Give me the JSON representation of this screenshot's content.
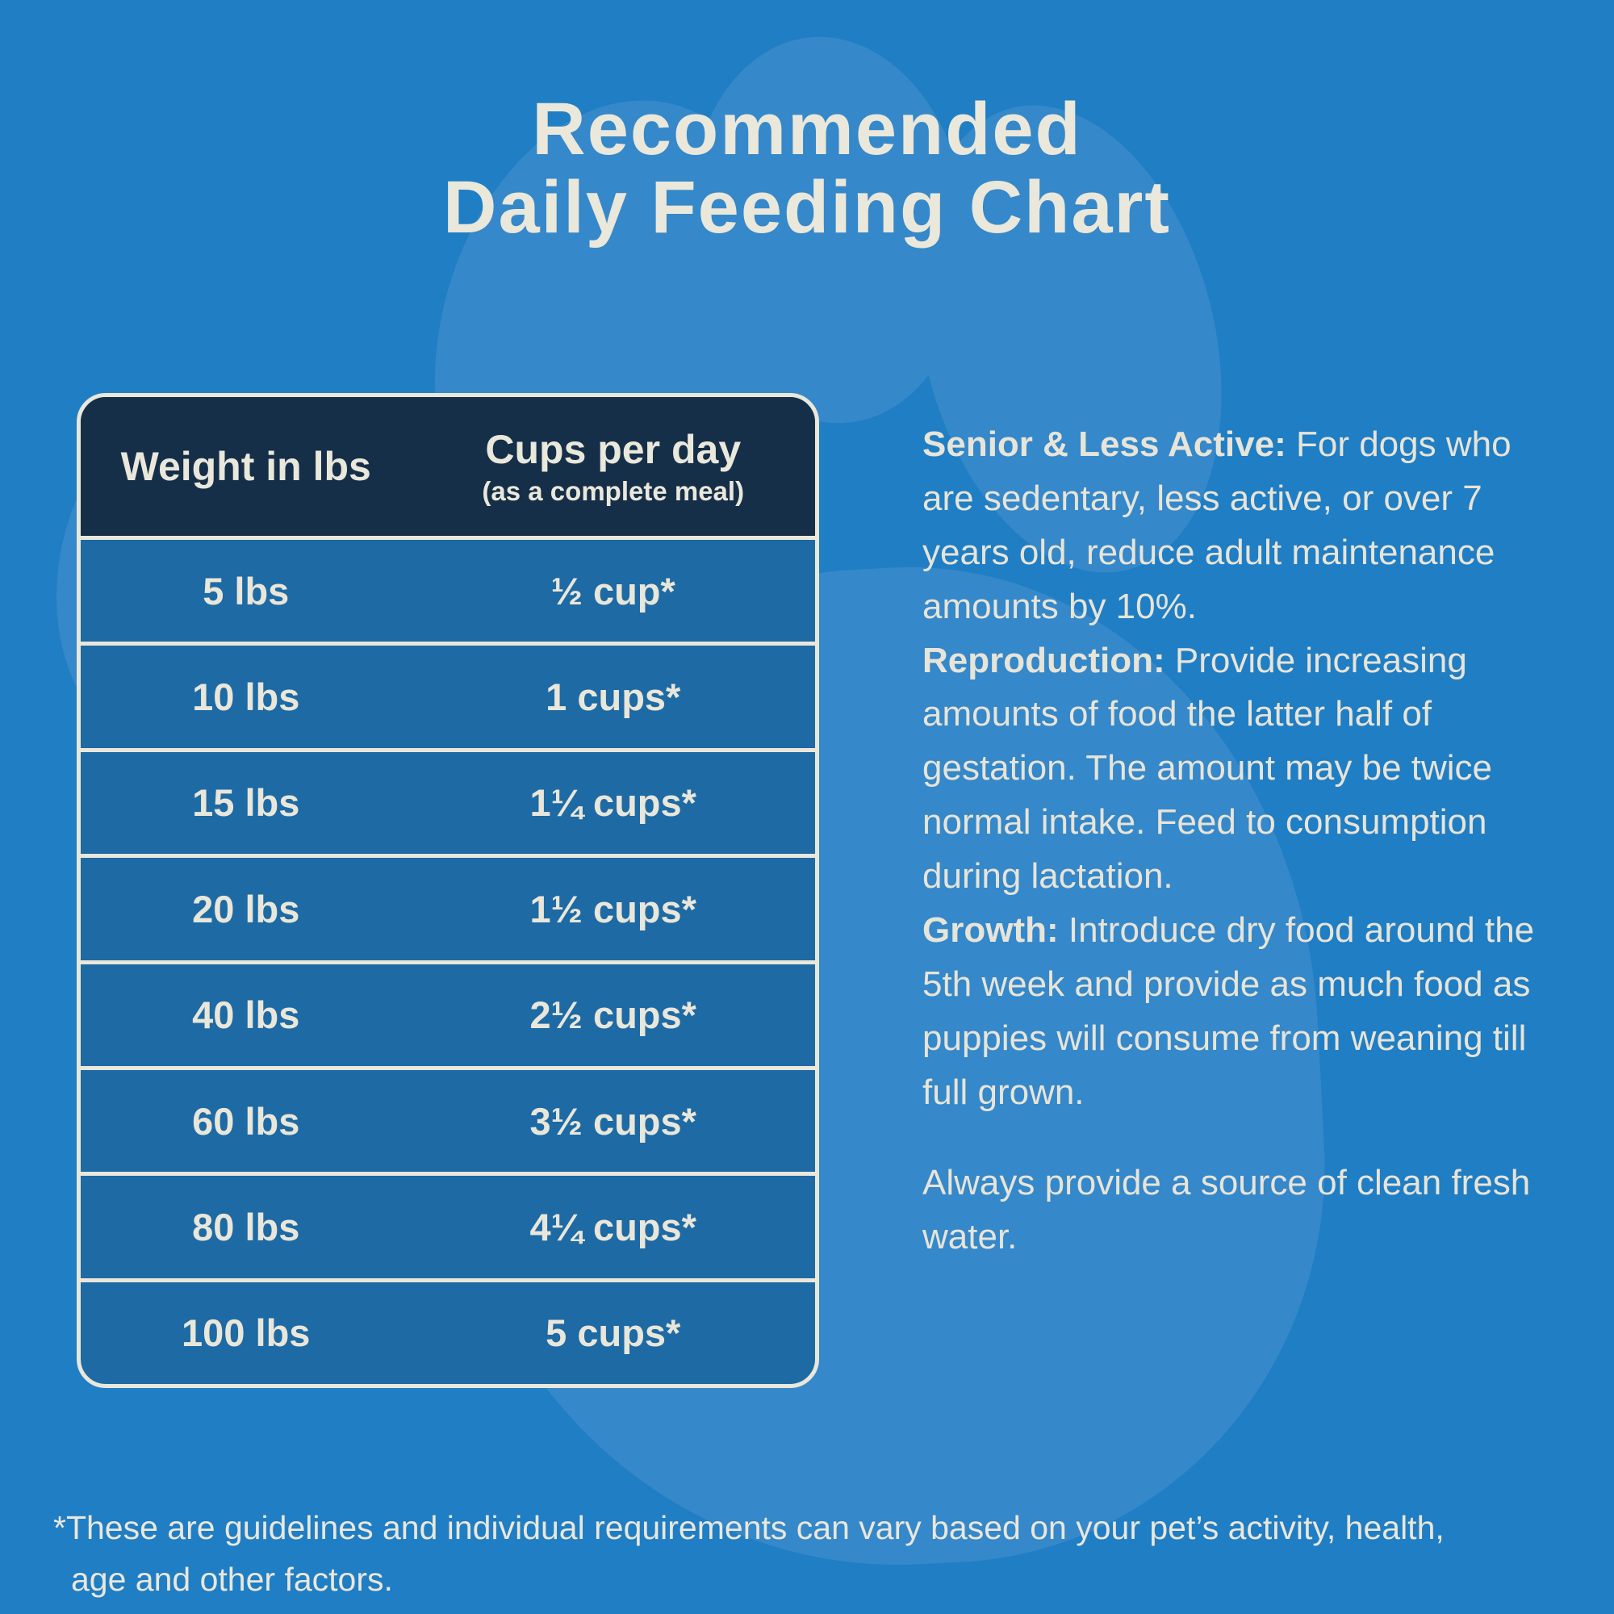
{
  "title": {
    "line1": "Recommended",
    "line2": "Daily Feeding Chart"
  },
  "table": {
    "header": {
      "col1": "Weight in lbs",
      "col2": "Cups per day",
      "col2_sub": "(as a complete meal)"
    },
    "rows": [
      {
        "weight": "5 lbs",
        "cups": "½ cup*"
      },
      {
        "weight": "10 lbs",
        "cups": "1 cups*"
      },
      {
        "weight": "15 lbs",
        "cups": "1¼ cups*"
      },
      {
        "weight": "20 lbs",
        "cups": "1½ cups*"
      },
      {
        "weight": "40 lbs",
        "cups": "2½ cups*"
      },
      {
        "weight": "60 lbs",
        "cups": "3½ cups*"
      },
      {
        "weight": "80 lbs",
        "cups": "4¼ cups*"
      },
      {
        "weight": "100 lbs",
        "cups": "5 cups*"
      }
    ]
  },
  "notes": {
    "paragraphs": [
      {
        "label": "Senior & Less Active:",
        "text": " For dogs who are sedentary, less active, or over 7 years old, reduce adult maintenance amounts by 10%."
      },
      {
        "label": "Reproduction:",
        "text": " Provide increasing amounts of food the latter half of gestation. The amount may be twice normal intake. Feed to consumption during lactation."
      },
      {
        "label": "Growth:",
        "text": " Introduce dry food around the 5th week and provide as much food as puppies will consume from weaning till full grown."
      }
    ],
    "water": "Always provide a source of clean fresh water."
  },
  "footnote": {
    "line1": "*These are guidelines and individual requirements can vary based on your pet’s activity, health,",
    "line2": "age and other factors."
  },
  "colors": {
    "background": "#1F7EC4",
    "paw_watermark": "#3588C9",
    "table_header_bg": "#152F49",
    "table_row_bg": "#1D6AA4",
    "border_cream": "#EAE7DB",
    "text_cream": "#E9E6DA"
  }
}
